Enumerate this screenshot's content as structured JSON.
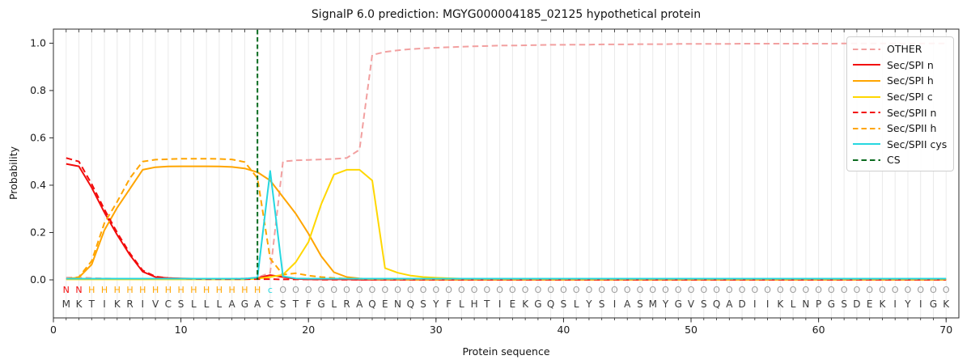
{
  "chart_data": {
    "type": "line",
    "title": "SignalP 6.0 prediction: MGYG000004185_02125 hypothetical protein",
    "xlabel": "Protein sequence",
    "ylabel": "Probability",
    "xlim": [
      0,
      71
    ],
    "ylim": [
      -0.16,
      1.06
    ],
    "xticks": [
      0,
      10,
      20,
      30,
      40,
      50,
      60,
      70
    ],
    "yticks": [
      0.0,
      0.2,
      0.4,
      0.6,
      0.8,
      1.0
    ],
    "grid": "vertical gridline at every residue position",
    "legend_position": "upper right",
    "colors": {
      "grid": "#eaeaea",
      "axis": "#2b2b2b",
      "tick_text": "#1c1c1c",
      "seq_text": "#3a3a3a"
    },
    "label_colors": {
      "N": "#f20c0c",
      "H": "#ffa500",
      "c": "#26d7e0",
      "O": "#9b9b9b"
    },
    "sequence": "MKTIKRIVCSLLLAGACSTFGLRAQENQSYFLHTIEKGQSLYSIASMYGVSQADIIKLNPGSDEKIYIGK",
    "region_labels": "NNHHHHHHHHHHHHHHcOOOOOOOOOOOOOOOOOOOOOOOOOOOOOOOOOOOOOOOOOOOOOOOOOOOOO",
    "cs_line": {
      "name": "CS",
      "x": 16,
      "color": "#0a6b1f",
      "dash": "5.5 3.5"
    },
    "series": [
      {
        "name": "OTHER",
        "slug": "other",
        "color": "#f2a0a0",
        "dash": "7.5 4.5",
        "values": [
          0.01,
          0.01,
          0.008,
          0.006,
          0.005,
          0.004,
          0.004,
          0.004,
          0.004,
          0.004,
          0.004,
          0.004,
          0.004,
          0.005,
          0.006,
          0.01,
          0.03,
          0.5,
          0.505,
          0.507,
          0.509,
          0.511,
          0.515,
          0.55,
          0.95,
          0.963,
          0.97,
          0.975,
          0.978,
          0.981,
          0.983,
          0.985,
          0.987,
          0.988,
          0.99,
          0.99,
          0.991,
          0.992,
          0.993,
          0.993,
          0.994,
          0.994,
          0.995,
          0.995,
          0.995,
          0.996,
          0.996,
          0.996,
          0.997,
          0.997,
          0.997,
          0.997,
          0.997,
          0.998,
          0.998,
          0.998,
          0.998,
          0.998,
          0.998,
          0.998,
          0.998,
          0.999,
          0.999,
          0.999,
          0.999,
          0.999,
          0.999,
          0.999,
          0.999,
          0.999
        ]
      },
      {
        "name": "Sec/SPI n",
        "slug": "sec-spi-n",
        "color": "#f20c0c",
        "dash": null,
        "values": [
          0.49,
          0.48,
          0.39,
          0.285,
          0.19,
          0.105,
          0.035,
          0.012,
          0.008,
          0.006,
          0.005,
          0.005,
          0.004,
          0.004,
          0.004,
          0.008,
          0.02,
          0.012,
          0.004,
          0.002,
          0.002,
          0.002,
          0.002,
          0.001,
          0.001,
          0.001,
          0.001,
          0.001,
          0.001,
          0.001,
          0.001,
          0.001,
          0.001,
          0.001,
          0.001,
          0.001,
          0.001,
          0.001,
          0.001,
          0.001,
          0.001,
          0.001,
          0.001,
          0.001,
          0.001,
          0.001,
          0.001,
          0.001,
          0.001,
          0.001,
          0.001,
          0.001,
          0.001,
          0.001,
          0.001,
          0.001,
          0.001,
          0.001,
          0.001,
          0.001,
          0.001,
          0.001,
          0.001,
          0.001,
          0.001,
          0.001,
          0.001,
          0.001,
          0.001,
          0.001
        ]
      },
      {
        "name": "Sec/SPI h",
        "slug": "sec-spi-h",
        "color": "#ffa500",
        "dash": null,
        "values": [
          0.004,
          0.01,
          0.065,
          0.21,
          0.305,
          0.385,
          0.465,
          0.476,
          0.479,
          0.48,
          0.48,
          0.48,
          0.479,
          0.477,
          0.471,
          0.455,
          0.42,
          0.35,
          0.28,
          0.195,
          0.1,
          0.032,
          0.012,
          0.006,
          0.003,
          0.002,
          0.002,
          0.001,
          0.001,
          0.001,
          0.001,
          0.001,
          0.001,
          0.001,
          0.001,
          0.001,
          0.001,
          0.001,
          0.001,
          0.001,
          0.001,
          0.001,
          0.001,
          0.001,
          0.001,
          0.001,
          0.001,
          0.001,
          0.001,
          0.001,
          0.001,
          0.001,
          0.001,
          0.001,
          0.001,
          0.001,
          0.001,
          0.001,
          0.001,
          0.001,
          0.001,
          0.001,
          0.001,
          0.001,
          0.001,
          0.001,
          0.001,
          0.001,
          0.001,
          0.001
        ]
      },
      {
        "name": "Sec/SPI c",
        "slug": "sec-spi-c",
        "color": "#ffd700",
        "dash": null,
        "values": [
          0.002,
          0.002,
          0.002,
          0.002,
          0.002,
          0.002,
          0.002,
          0.002,
          0.002,
          0.002,
          0.002,
          0.002,
          0.002,
          0.002,
          0.002,
          0.005,
          0.012,
          0.022,
          0.075,
          0.16,
          0.32,
          0.445,
          0.465,
          0.465,
          0.42,
          0.05,
          0.03,
          0.018,
          0.012,
          0.009,
          0.007,
          0.005,
          0.004,
          0.004,
          0.003,
          0.003,
          0.003,
          0.003,
          0.002,
          0.002,
          0.002,
          0.002,
          0.002,
          0.002,
          0.002,
          0.002,
          0.002,
          0.002,
          0.002,
          0.002,
          0.002,
          0.002,
          0.002,
          0.002,
          0.002,
          0.002,
          0.002,
          0.002,
          0.002,
          0.002,
          0.002,
          0.002,
          0.002,
          0.002,
          0.002,
          0.002,
          0.002,
          0.002,
          0.002,
          0.002
        ]
      },
      {
        "name": "Sec/SPII n",
        "slug": "sec-spii-n",
        "color": "#f20c0c",
        "dash": "7.5 4.5",
        "values": [
          0.515,
          0.5,
          0.405,
          0.298,
          0.2,
          0.112,
          0.04,
          0.014,
          0.008,
          0.005,
          0.004,
          0.003,
          0.003,
          0.003,
          0.003,
          0.003,
          0.003,
          0.002,
          0.002,
          0.002,
          0.001,
          0.001,
          0.001,
          0.001,
          0.001,
          0.001,
          0.001,
          0.001,
          0.001,
          0.001,
          0.001,
          0.001,
          0.001,
          0.001,
          0.001,
          0.001,
          0.001,
          0.001,
          0.001,
          0.001,
          0.001,
          0.001,
          0.001,
          0.001,
          0.001,
          0.001,
          0.001,
          0.001,
          0.001,
          0.001,
          0.001,
          0.001,
          0.001,
          0.001,
          0.001,
          0.001,
          0.001,
          0.001,
          0.001,
          0.001,
          0.001,
          0.001,
          0.001,
          0.001,
          0.001,
          0.001,
          0.001,
          0.001,
          0.001,
          0.001
        ]
      },
      {
        "name": "Sec/SPII h",
        "slug": "sec-spii-h",
        "color": "#ffa500",
        "dash": "7.5 4.5",
        "values": [
          0.004,
          0.012,
          0.08,
          0.24,
          0.33,
          0.43,
          0.5,
          0.508,
          0.51,
          0.512,
          0.512,
          0.512,
          0.511,
          0.509,
          0.498,
          0.43,
          0.09,
          0.022,
          0.028,
          0.018,
          0.012,
          0.008,
          0.005,
          0.004,
          0.003,
          0.003,
          0.003,
          0.003,
          0.003,
          0.003,
          0.003,
          0.003,
          0.003,
          0.003,
          0.003,
          0.003,
          0.003,
          0.003,
          0.003,
          0.003,
          0.003,
          0.003,
          0.003,
          0.003,
          0.003,
          0.003,
          0.003,
          0.003,
          0.003,
          0.003,
          0.003,
          0.003,
          0.003,
          0.003,
          0.003,
          0.003,
          0.003,
          0.003,
          0.003,
          0.003,
          0.003,
          0.003,
          0.003,
          0.003,
          0.003,
          0.003,
          0.003,
          0.003,
          0.003,
          0.003
        ]
      },
      {
        "name": "Sec/SPII cys",
        "slug": "sec-spii-cys",
        "color": "#26d7e0",
        "dash": null,
        "values": [
          0.005,
          0.005,
          0.005,
          0.005,
          0.005,
          0.005,
          0.005,
          0.005,
          0.005,
          0.005,
          0.005,
          0.005,
          0.005,
          0.005,
          0.005,
          0.01,
          0.46,
          0.015,
          0.006,
          0.005,
          0.005,
          0.005,
          0.005,
          0.005,
          0.005,
          0.005,
          0.005,
          0.005,
          0.005,
          0.005,
          0.005,
          0.005,
          0.005,
          0.005,
          0.005,
          0.005,
          0.005,
          0.005,
          0.005,
          0.005,
          0.005,
          0.005,
          0.005,
          0.005,
          0.005,
          0.005,
          0.005,
          0.005,
          0.005,
          0.005,
          0.005,
          0.005,
          0.005,
          0.005,
          0.005,
          0.005,
          0.005,
          0.005,
          0.005,
          0.005,
          0.005,
          0.005,
          0.005,
          0.005,
          0.005,
          0.005,
          0.005,
          0.005,
          0.005,
          0.005
        ]
      }
    ]
  }
}
